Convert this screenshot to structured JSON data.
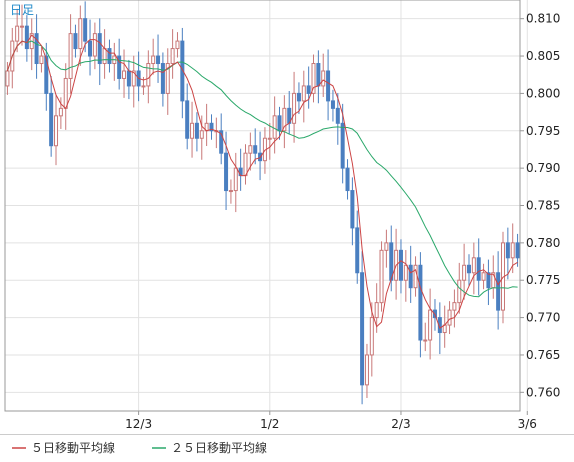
{
  "chart_data": {
    "type": "candlestick",
    "period_label": "日足",
    "y_ticks": [
      0.81,
      0.805,
      0.8,
      0.795,
      0.79,
      0.785,
      0.78,
      0.775,
      0.77,
      0.765,
      0.76
    ],
    "y_tick_labels": [
      "0.810",
      "0.805",
      "0.800",
      "0.795",
      "0.790",
      "0.785",
      "0.780",
      "0.775",
      "0.770",
      "0.765",
      "0.760"
    ],
    "ylim": [
      0.7575,
      0.8125
    ],
    "x_ticks": [
      {
        "index": 27,
        "label": "12/3"
      },
      {
        "index": 54,
        "label": "1/2"
      },
      {
        "index": 81,
        "label": "2/3"
      },
      {
        "index": 107,
        "label": "3/6"
      }
    ],
    "legend": [
      {
        "name": "５日移動平均線",
        "color": "#cc4444"
      },
      {
        "name": "２５日移動平均線",
        "color": "#2aa86a"
      }
    ],
    "colors": {
      "up": "#c87878",
      "down": "#4a7fc0",
      "ma5": "#cc4444",
      "ma25": "#2aa86a",
      "grid": "#e2e2e2",
      "frame": "#999999"
    },
    "closes": [
      0.803,
      0.807,
      0.809,
      0.809,
      0.806,
      0.808,
      0.804,
      0.805,
      0.8,
      0.793,
      0.797,
      0.798,
      0.802,
      0.808,
      0.806,
      0.81,
      0.807,
      0.805,
      0.808,
      0.804,
      0.806,
      0.804,
      0.805,
      0.802,
      0.803,
      0.801,
      0.803,
      0.801,
      0.801,
      0.804,
      0.805,
      0.804,
      0.8,
      0.804,
      0.806,
      0.807,
      0.799,
      0.794,
      0.796,
      0.794,
      0.795,
      0.796,
      0.795,
      0.795,
      0.792,
      0.787,
      0.787,
      0.79,
      0.789,
      0.792,
      0.793,
      0.792,
      0.791,
      0.794,
      0.794,
      0.797,
      0.795,
      0.798,
      0.796,
      0.8,
      0.799,
      0.801,
      0.8,
      0.804,
      0.801,
      0.803,
      0.799,
      0.798,
      0.796,
      0.79,
      0.787,
      0.782,
      0.776,
      0.761,
      0.765,
      0.77,
      0.772,
      0.779,
      0.78,
      0.775,
      0.779,
      0.775,
      0.777,
      0.774,
      0.777,
      0.767,
      0.767,
      0.771,
      0.77,
      0.768,
      0.769,
      0.771,
      0.772,
      0.775,
      0.777,
      0.776,
      0.778,
      0.775,
      0.776,
      0.774,
      0.776,
      0.771,
      0.78,
      0.778,
      0.78,
      0.778
    ]
  }
}
